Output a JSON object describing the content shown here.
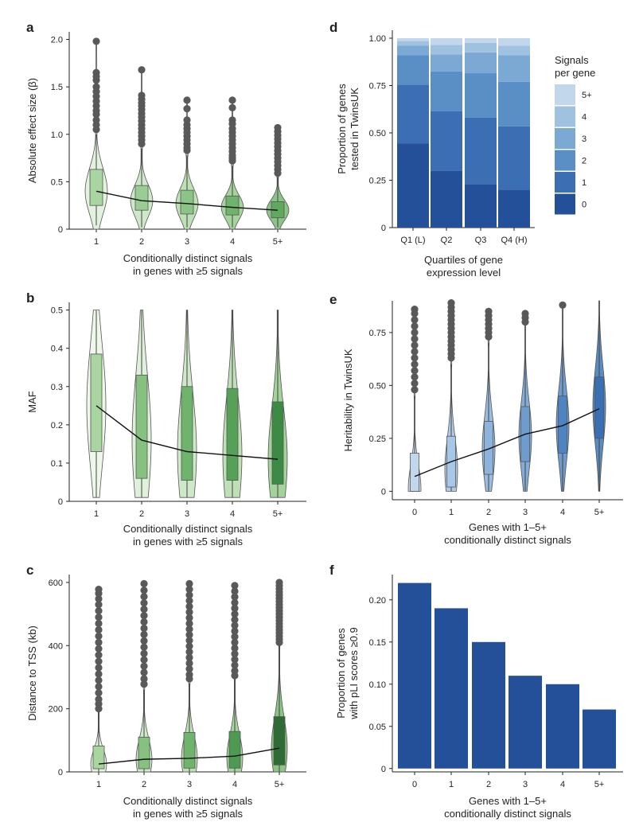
{
  "figure": {
    "panel_labels": [
      "a",
      "b",
      "c",
      "d",
      "e",
      "f"
    ]
  },
  "chart_data": [
    {
      "panel": "a",
      "type": "violin",
      "xlabel": [
        "Conditionally distinct signals",
        "in genes with ≥5 signals"
      ],
      "ylabel": "Absolute effect size (β)",
      "ylim": [
        0,
        2.08
      ],
      "yticks": [
        0,
        0.5,
        1.0,
        1.5,
        2.0
      ],
      "ytick_labels": [
        "0",
        "0.5",
        "1.0",
        "1.5",
        "2.0"
      ],
      "categories": [
        "1",
        "2",
        "3",
        "4",
        "5+"
      ],
      "colors": [
        "#e3f2df",
        "#cfe8c9",
        "#bde0b5",
        "#a6d49d",
        "#8cc487"
      ],
      "box_colors": [
        "#a8d5a0",
        "#9acd92",
        "#8cc487",
        "#6fb36c",
        "#5fa85e"
      ],
      "series": [
        {
          "q1": 0.25,
          "median": 0.4,
          "q3": 0.63,
          "wlo": 0.04,
          "whi": 1.0,
          "vmin": 0.0,
          "vmax": 1.98,
          "outliers": [
            1.98,
            1.65,
            1.61,
            1.57,
            1.5,
            1.45,
            1.4,
            1.35,
            1.3,
            1.25,
            1.21,
            1.15,
            1.1,
            1.05
          ]
        },
        {
          "q1": 0.2,
          "median": 0.3,
          "q3": 0.46,
          "wlo": 0.02,
          "whi": 0.85,
          "vmin": 0.0,
          "vmax": 1.68,
          "outliers": [
            1.68,
            1.41,
            1.37,
            1.33,
            1.3,
            1.26,
            1.22,
            1.18,
            1.14,
            1.1,
            1.06,
            1.02,
            0.98,
            0.94,
            0.9
          ]
        },
        {
          "q1": 0.16,
          "median": 0.27,
          "q3": 0.41,
          "wlo": 0.02,
          "whi": 0.78,
          "vmin": 0.0,
          "vmax": 1.36,
          "outliers": [
            1.36,
            1.27,
            1.15,
            1.1,
            1.06,
            1.02,
            0.98,
            0.94,
            0.9,
            0.86,
            0.83
          ]
        },
        {
          "q1": 0.15,
          "median": 0.23,
          "q3": 0.35,
          "wlo": 0.02,
          "whi": 0.67,
          "vmin": 0.0,
          "vmax": 1.36,
          "outliers": [
            1.36,
            1.28,
            1.15,
            1.11,
            1.06,
            1.02,
            0.98,
            0.94,
            0.9,
            0.86,
            0.82,
            0.78,
            0.75,
            0.72
          ]
        },
        {
          "q1": 0.12,
          "median": 0.2,
          "q3": 0.29,
          "wlo": 0.02,
          "whi": 0.55,
          "vmin": 0.0,
          "vmax": 1.07,
          "outliers": [
            1.07,
            1.03,
            0.99,
            0.95,
            0.91,
            0.87,
            0.83,
            0.79,
            0.75,
            0.71,
            0.67,
            0.63,
            0.59
          ]
        }
      ],
      "trend": [
        0.4,
        0.3,
        0.27,
        0.23,
        0.2
      ]
    },
    {
      "panel": "b",
      "type": "violin",
      "xlabel": [
        "Conditionally distinct signals",
        "in genes with ≥5 signals"
      ],
      "ylabel": "MAF",
      "ylim": [
        0,
        0.52
      ],
      "yticks": [
        0,
        0.1,
        0.2,
        0.3,
        0.4,
        0.5
      ],
      "ytick_labels": [
        "0",
        "0.1",
        "0.2",
        "0.3",
        "0.4",
        "0.5"
      ],
      "categories": [
        "1",
        "2",
        "3",
        "4",
        "5+"
      ],
      "colors": [
        "#eef7ea",
        "#e0f1db",
        "#cfe8c9",
        "#bfe0b7",
        "#a3d29a"
      ],
      "box_colors": [
        "#a8d5a0",
        "#87c17f",
        "#6fb36c",
        "#55a158",
        "#3d8a45"
      ],
      "series": [
        {
          "q1": 0.13,
          "median": 0.25,
          "q3": 0.385,
          "wlo": 0.01,
          "whi": 0.5,
          "vmin": 0.01,
          "vmax": 0.5,
          "outliers": []
        },
        {
          "q1": 0.06,
          "median": 0.16,
          "q3": 0.33,
          "wlo": 0.01,
          "whi": 0.5,
          "vmin": 0.01,
          "vmax": 0.5,
          "outliers": []
        },
        {
          "q1": 0.055,
          "median": 0.13,
          "q3": 0.3,
          "wlo": 0.01,
          "whi": 0.5,
          "vmin": 0.01,
          "vmax": 0.5,
          "outliers": []
        },
        {
          "q1": 0.055,
          "median": 0.12,
          "q3": 0.295,
          "wlo": 0.01,
          "whi": 0.5,
          "vmin": 0.01,
          "vmax": 0.5,
          "outliers": []
        },
        {
          "q1": 0.045,
          "median": 0.11,
          "q3": 0.26,
          "wlo": 0.01,
          "whi": 0.5,
          "vmin": 0.01,
          "vmax": 0.5,
          "outliers": []
        }
      ],
      "trend": [
        0.25,
        0.16,
        0.13,
        0.12,
        0.11
      ]
    },
    {
      "panel": "c",
      "type": "violin",
      "xlabel": [
        "Conditionally distinct signals",
        "in genes with ≥5 signals"
      ],
      "ylabel": "Distance to TSS (kb)",
      "ylim": [
        0,
        625
      ],
      "yticks": [
        0,
        200,
        400,
        600
      ],
      "ytick_labels": [
        "0",
        "200",
        "400",
        "600"
      ],
      "categories": [
        "1",
        "2",
        "3",
        "4",
        "5+"
      ],
      "colors": [
        "#e3f2df",
        "#cfe8c9",
        "#bde0b5",
        "#a6d49d",
        "#8cc487"
      ],
      "box_colors": [
        "#a8d5a0",
        "#87c17f",
        "#6fb36c",
        "#4e9a52",
        "#2e6b35"
      ],
      "series": [
        {
          "q1": 10,
          "median": 25,
          "q3": 82,
          "wlo": 0,
          "whi": 190,
          "vmin": 0,
          "vmax": 578,
          "outliers": [
            578,
            565,
            548,
            530,
            510,
            490,
            470,
            450,
            430,
            410,
            390,
            370,
            350,
            330,
            310,
            290,
            270,
            250,
            230,
            215,
            200
          ]
        },
        {
          "q1": 10,
          "median": 40,
          "q3": 110,
          "wlo": 0,
          "whi": 260,
          "vmin": 0,
          "vmax": 596,
          "outliers": [
            596,
            575,
            555,
            535,
            515,
            495,
            475,
            455,
            435,
            415,
            395,
            375,
            355,
            335,
            315,
            295,
            278
          ]
        },
        {
          "q1": 12,
          "median": 43,
          "q3": 125,
          "wlo": 0,
          "whi": 280,
          "vmin": 0,
          "vmax": 596,
          "outliers": [
            596,
            578,
            560,
            542,
            524,
            506,
            488,
            470,
            452,
            434,
            416,
            398,
            380,
            362,
            344,
            326,
            308,
            295
          ]
        },
        {
          "q1": 12,
          "median": 45,
          "q3": 128,
          "wlo": 0,
          "whi": 295,
          "vmin": 0,
          "vmax": 590,
          "outliers": [
            590,
            572,
            554,
            536,
            518,
            500,
            482,
            464,
            446,
            428,
            410,
            392,
            374,
            356,
            338,
            320,
            305
          ]
        },
        {
          "q1": 22,
          "median": 75,
          "q3": 175,
          "wlo": 0,
          "whi": 400,
          "vmin": 0,
          "vmax": 600,
          "outliers": [
            600,
            590,
            580,
            570,
            560,
            550,
            540,
            530,
            520,
            510,
            500,
            490,
            480,
            470,
            460,
            450,
            440,
            430,
            420,
            410
          ]
        }
      ],
      "trend": [
        25,
        40,
        43,
        50,
        75
      ]
    },
    {
      "panel": "d",
      "type": "stacked_bar",
      "xlabel": [
        "Quartiles of gene",
        "expression level"
      ],
      "ylabel": [
        "Proportion of genes",
        "tested in TwinsUK"
      ],
      "ylim": [
        0,
        1.0
      ],
      "yticks": [
        0,
        0.25,
        0.5,
        0.75,
        1.0
      ],
      "ytick_labels": [
        "0",
        "0.25",
        "0.50",
        "0.75",
        "1.00"
      ],
      "categories": [
        "Q1 (L)",
        "Q2",
        "Q3",
        "Q4 (H)"
      ],
      "legend_title": [
        "Signals",
        "per gene"
      ],
      "series": [
        {
          "name": "0",
          "color": "#24509a",
          "values": [
            0.445,
            0.3,
            0.23,
            0.2
          ]
        },
        {
          "name": "1",
          "color": "#3b6eb3",
          "values": [
            0.31,
            0.315,
            0.35,
            0.335
          ]
        },
        {
          "name": "2",
          "color": "#5a8fc6",
          "values": [
            0.155,
            0.21,
            0.235,
            0.235
          ]
        },
        {
          "name": "3",
          "color": "#7ba9d4",
          "values": [
            0.05,
            0.09,
            0.11,
            0.14
          ]
        },
        {
          "name": "4",
          "color": "#9fc2e1",
          "values": [
            0.025,
            0.05,
            0.05,
            0.05
          ]
        },
        {
          "name": "5+",
          "color": "#c3d7ec",
          "values": [
            0.015,
            0.035,
            0.025,
            0.04
          ]
        }
      ]
    },
    {
      "panel": "e",
      "type": "violin",
      "xlabel": [
        "Genes with 1–5+",
        "conditionally distinct signals"
      ],
      "ylabel": "Heritability in TwinsUK",
      "ylim": [
        -0.04,
        0.9
      ],
      "yticks": [
        0,
        0.25,
        0.5,
        0.75
      ],
      "ytick_labels": [
        "0",
        "0.25",
        "0.50",
        "0.75"
      ],
      "categories": [
        "0",
        "1",
        "2",
        "3",
        "4",
        "5+"
      ],
      "colors": [
        "#c9daef",
        "#b1cbe6",
        "#9abcde",
        "#85acd6",
        "#6f9ccc",
        "#5a8cc2"
      ],
      "box_colors": [
        "#c3d7ec",
        "#a8c6e5",
        "#8db4dc",
        "#6e9ccf",
        "#4f84c1",
        "#3a70b2"
      ],
      "series": [
        {
          "q1": 0.0,
          "median": 0.01,
          "q3": 0.18,
          "wlo": 0.0,
          "whi": 0.45,
          "vmin": 0.0,
          "vmax": 0.86,
          "outliers": [
            0.86,
            0.84,
            0.81,
            0.78,
            0.75,
            0.72,
            0.69,
            0.66,
            0.63,
            0.6,
            0.57,
            0.54,
            0.51,
            0.48
          ]
        },
        {
          "q1": 0.02,
          "median": 0.1,
          "q3": 0.26,
          "wlo": 0.0,
          "whi": 0.6,
          "vmin": 0.0,
          "vmax": 0.89,
          "outliers": [
            0.89,
            0.87,
            0.85,
            0.83,
            0.81,
            0.79,
            0.77,
            0.75,
            0.73,
            0.71,
            0.69,
            0.67,
            0.65,
            0.63
          ]
        },
        {
          "q1": 0.08,
          "median": 0.2,
          "q3": 0.33,
          "wlo": 0.0,
          "whi": 0.7,
          "vmin": 0.0,
          "vmax": 0.85,
          "outliers": [
            0.85,
            0.83,
            0.81,
            0.79,
            0.77,
            0.75,
            0.73
          ]
        },
        {
          "q1": 0.14,
          "median": 0.26,
          "q3": 0.4,
          "wlo": 0.0,
          "whi": 0.78,
          "vmin": 0.0,
          "vmax": 0.84,
          "outliers": [
            0.84,
            0.82,
            0.8
          ]
        },
        {
          "q1": 0.18,
          "median": 0.31,
          "q3": 0.45,
          "wlo": 0.0,
          "whi": 0.84,
          "vmin": 0.0,
          "vmax": 0.88,
          "outliers": [
            0.88
          ]
        },
        {
          "q1": 0.25,
          "median": 0.4,
          "q3": 0.54,
          "wlo": 0.0,
          "whi": 0.9,
          "vmin": 0.0,
          "vmax": 0.9,
          "outliers": []
        }
      ],
      "trend": [
        0.07,
        0.14,
        0.2,
        0.27,
        0.31,
        0.39
      ]
    },
    {
      "panel": "f",
      "type": "bar",
      "xlabel": [
        "Genes with 1–5+",
        "conditionally distinct signals"
      ],
      "ylabel": [
        "Proportion of genes",
        "with pLI scores ≥0.9"
      ],
      "ylim": [
        -0.004,
        0.23
      ],
      "yticks": [
        0,
        0.05,
        0.1,
        0.15,
        0.2
      ],
      "ytick_labels": [
        "0",
        "0.05",
        "0.10",
        "0.15",
        "0.20"
      ],
      "categories": [
        "0",
        "1",
        "2",
        "3",
        "4",
        "5+"
      ],
      "values": [
        0.22,
        0.19,
        0.15,
        0.11,
        0.1,
        0.07
      ],
      "color": "#24509a"
    }
  ]
}
